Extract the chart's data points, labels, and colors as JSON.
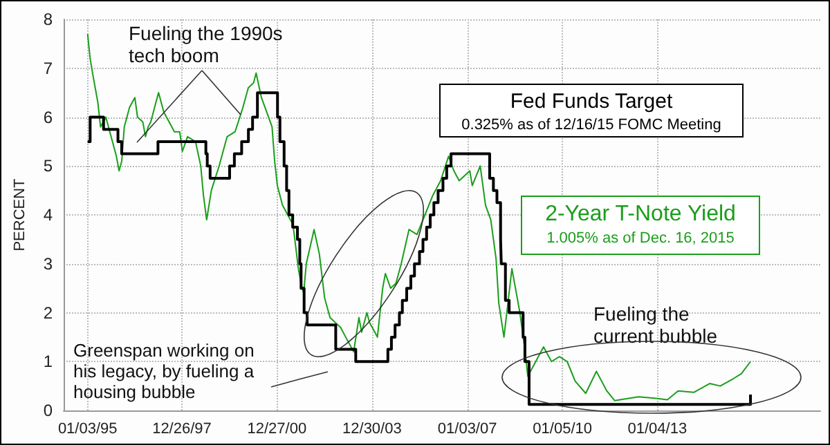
{
  "chart_data": {
    "type": "line",
    "ylabel": "PERCENT",
    "xlim": [
      "1994-04",
      "2018-03"
    ],
    "xticks": [
      {
        "value": "1995-01-03",
        "label": "01/03/95"
      },
      {
        "value": "1997-12-26",
        "label": "12/26/97"
      },
      {
        "value": "2000-12-27",
        "label": "12/27/00"
      },
      {
        "value": "2003-12-30",
        "label": "12/30/03"
      },
      {
        "value": "2007-01-03",
        "label": "01/03/07"
      },
      {
        "value": "2010-01-05",
        "label": "01/05/10"
      },
      {
        "value": "2013-01-04",
        "label": "01/04/13"
      }
    ],
    "ylim": [
      0,
      8
    ],
    "yticks": [
      0,
      1,
      2,
      3,
      4,
      5,
      6,
      7,
      8
    ],
    "grid": true,
    "legend": false,
    "series": [
      {
        "name": "Fed Funds Target",
        "type": "step",
        "color": "#000000",
        "x": [
          "1995-01-03",
          "1995-02-01",
          "1995-07-06",
          "1995-12-19",
          "1996-01-31",
          "1997-03-25",
          "1998-09-29",
          "1998-10-15",
          "1998-11-17",
          "1999-06-30",
          "1999-08-24",
          "1999-11-16",
          "2000-02-02",
          "2000-03-21",
          "2000-05-16",
          "2001-01-03",
          "2001-01-31",
          "2001-03-20",
          "2001-04-18",
          "2001-05-15",
          "2001-06-27",
          "2001-08-21",
          "2001-09-17",
          "2001-10-02",
          "2001-11-06",
          "2001-12-11",
          "2002-11-06",
          "2003-06-25",
          "2004-06-30",
          "2004-08-10",
          "2004-09-21",
          "2004-11-10",
          "2004-12-14",
          "2005-02-02",
          "2005-03-22",
          "2005-05-03",
          "2005-06-30",
          "2005-08-09",
          "2005-09-20",
          "2005-11-01",
          "2005-12-13",
          "2006-01-31",
          "2006-03-28",
          "2006-05-10",
          "2006-06-29",
          "2007-09-18",
          "2007-10-31",
          "2007-12-11",
          "2008-01-22",
          "2008-01-30",
          "2008-03-18",
          "2008-04-30",
          "2008-10-08",
          "2008-10-29",
          "2008-12-16",
          "2015-12-16"
        ],
        "values": [
          5.5,
          6.0,
          5.75,
          5.5,
          5.25,
          5.5,
          5.25,
          5.0,
          4.75,
          5.0,
          5.25,
          5.5,
          5.75,
          6.0,
          6.5,
          6.0,
          5.5,
          5.0,
          4.5,
          4.0,
          3.75,
          3.5,
          3.0,
          2.5,
          2.0,
          1.75,
          1.25,
          1.0,
          1.25,
          1.5,
          1.75,
          2.0,
          2.25,
          2.5,
          2.75,
          3.0,
          3.25,
          3.5,
          3.75,
          4.0,
          4.25,
          4.5,
          4.75,
          5.0,
          5.25,
          4.75,
          4.5,
          4.25,
          3.5,
          3.0,
          2.25,
          2.0,
          1.5,
          1.0,
          0.125,
          0.325
        ]
      },
      {
        "name": "2-Year T-Note Yield",
        "type": "line",
        "color": "#1a9e1a",
        "x": [
          "1995-01-03",
          "1995-02",
          "1995-03",
          "1995-05",
          "1995-06",
          "1995-08",
          "1995-10",
          "1995-12",
          "1996-01",
          "1996-02",
          "1996-03",
          "1996-05",
          "1996-07",
          "1996-08",
          "1996-10",
          "1996-11",
          "1996-12",
          "1997-01",
          "1997-03",
          "1997-04",
          "1997-06",
          "1997-08",
          "1997-10",
          "1997-12",
          "1998-01",
          "1998-03",
          "1998-06",
          "1998-08",
          "1998-09",
          "1998-10-08",
          "1998-12",
          "1999-03",
          "1999-06",
          "1999-09",
          "1999-12",
          "2000-02",
          "2000-04",
          "2000-05",
          "2000-07",
          "2000-09",
          "2000-11",
          "2000-12",
          "2001-01",
          "2001-03",
          "2001-05",
          "2001-07",
          "2001-09",
          "2001-10",
          "2001-11",
          "2001-12",
          "2002-03",
          "2002-05",
          "2002-07",
          "2002-09",
          "2002-11",
          "2003-01",
          "2003-03",
          "2003-06",
          "2003-08",
          "2003-09",
          "2003-11",
          "2003-12",
          "2004-02",
          "2004-03",
          "2004-05",
          "2004-06",
          "2004-08",
          "2004-10",
          "2004-12",
          "2005-03",
          "2005-06",
          "2005-09",
          "2005-12",
          "2006-03",
          "2006-06",
          "2006-08",
          "2006-10",
          "2006-12",
          "2007-02",
          "2007-03",
          "2007-06",
          "2007-08",
          "2007-10",
          "2007-12",
          "2008-01",
          "2008-03",
          "2008-06",
          "2008-09",
          "2008-11",
          "2008-12",
          "2009-01",
          "2009-06",
          "2009-09",
          "2009-12",
          "2010-03",
          "2010-06",
          "2010-10",
          "2011-02",
          "2011-06",
          "2011-09",
          "2012-06",
          "2012-12",
          "2013-05",
          "2013-09",
          "2014-03",
          "2014-09",
          "2015-01",
          "2015-06",
          "2015-09",
          "2015-12-16"
        ],
        "values": [
          7.7,
          7.2,
          6.9,
          6.3,
          5.8,
          6.0,
          5.6,
          5.2,
          4.9,
          5.1,
          5.8,
          6.2,
          6.4,
          6.0,
          5.9,
          5.6,
          5.8,
          5.9,
          6.3,
          6.5,
          6.1,
          5.9,
          5.7,
          5.7,
          5.3,
          5.6,
          5.5,
          5.0,
          4.4,
          3.9,
          4.5,
          5.0,
          5.6,
          5.7,
          6.2,
          6.6,
          6.7,
          6.9,
          6.4,
          6.1,
          5.8,
          5.1,
          4.6,
          4.2,
          4.0,
          3.8,
          2.9,
          2.6,
          2.4,
          3.0,
          3.7,
          3.2,
          2.3,
          1.9,
          1.8,
          1.7,
          1.5,
          1.2,
          1.9,
          1.6,
          2.0,
          1.8,
          1.6,
          1.5,
          2.5,
          2.8,
          2.5,
          2.6,
          3.0,
          3.7,
          3.6,
          4.0,
          4.4,
          4.7,
          5.2,
          4.9,
          4.7,
          4.8,
          4.9,
          4.6,
          5.0,
          4.2,
          3.9,
          3.1,
          2.2,
          1.5,
          2.9,
          2.0,
          1.2,
          0.7,
          0.8,
          1.3,
          1.0,
          1.1,
          1.0,
          0.6,
          0.35,
          0.8,
          0.4,
          0.2,
          0.28,
          0.25,
          0.22,
          0.4,
          0.37,
          0.55,
          0.5,
          0.65,
          0.75,
          1.0
        ]
      }
    ],
    "annotations": [
      "0.325% as of 12/16/15 FOMC Meeting",
      "1.005% as of Dec. 16, 2015",
      "Fueling the 1990s tech boom",
      "Greenspan working on his legacy, by fueling a housing bubble",
      "Fueling the current bubble"
    ]
  }
}
